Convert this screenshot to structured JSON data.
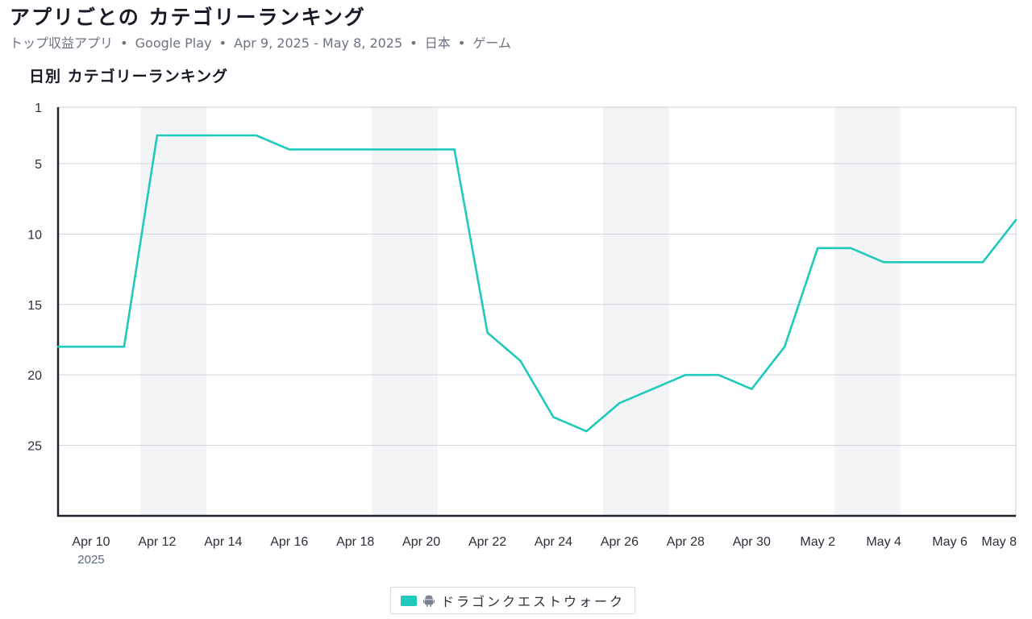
{
  "page": {
    "title": "アプリごとの カテゴリーランキング",
    "subtitle_parts": [
      "トップ収益アプリ",
      "Google Play",
      "Apr 9, 2025 - May 8, 2025",
      "日本",
      "ゲーム"
    ],
    "separator": "•"
  },
  "chart_title": "日別 カテゴリーランキング",
  "legend": {
    "series_label": "ドラゴンクエストウォーク",
    "platform_icon": "android-icon"
  },
  "colors": {
    "series": "#1fc9bb",
    "weekend_band": "#f3f4f6",
    "grid": "#cfd3da",
    "axis": "#1f2430"
  },
  "chart_data": {
    "type": "line",
    "title": "日別 カテゴリーランキング",
    "xlabel": "",
    "ylabel": "",
    "y_inverted": true,
    "ylim": [
      1,
      30
    ],
    "yticks": [
      1,
      5,
      10,
      15,
      20,
      25
    ],
    "x": [
      "Apr 9",
      "Apr 10",
      "Apr 11",
      "Apr 12",
      "Apr 13",
      "Apr 14",
      "Apr 15",
      "Apr 16",
      "Apr 17",
      "Apr 18",
      "Apr 19",
      "Apr 20",
      "Apr 21",
      "Apr 22",
      "Apr 23",
      "Apr 24",
      "Apr 25",
      "Apr 26",
      "Apr 27",
      "Apr 28",
      "Apr 29",
      "Apr 30",
      "May 1",
      "May 2",
      "May 3",
      "May 4",
      "May 5",
      "May 6",
      "May 7",
      "May 8"
    ],
    "x_tick_labels": [
      {
        "date": "Apr 10",
        "label": "Apr 10",
        "sub": "2025"
      },
      {
        "date": "Apr 12",
        "label": "Apr 12"
      },
      {
        "date": "Apr 14",
        "label": "Apr 14"
      },
      {
        "date": "Apr 16",
        "label": "Apr 16"
      },
      {
        "date": "Apr 18",
        "label": "Apr 18"
      },
      {
        "date": "Apr 20",
        "label": "Apr 20"
      },
      {
        "date": "Apr 22",
        "label": "Apr 22"
      },
      {
        "date": "Apr 24",
        "label": "Apr 24"
      },
      {
        "date": "Apr 26",
        "label": "Apr 26"
      },
      {
        "date": "Apr 28",
        "label": "Apr 28"
      },
      {
        "date": "Apr 30",
        "label": "Apr 30"
      },
      {
        "date": "May 2",
        "label": "May 2"
      },
      {
        "date": "May 4",
        "label": "May 4"
      },
      {
        "date": "May 6",
        "label": "May 6"
      },
      {
        "date": "May 8",
        "label": "May 8"
      }
    ],
    "weekend_bands": [
      [
        "Apr 12",
        "Apr 13"
      ],
      [
        "Apr 19",
        "Apr 20"
      ],
      [
        "Apr 26",
        "Apr 27"
      ],
      [
        "May 3",
        "May 4"
      ]
    ],
    "series": [
      {
        "name": "ドラゴンクエストウォーク",
        "color": "#1fc9bb",
        "values": [
          18,
          18,
          18,
          3,
          3,
          3,
          3,
          4,
          4,
          4,
          4,
          4,
          4,
          17,
          19,
          23,
          24,
          22,
          21,
          20,
          20,
          21,
          18,
          11,
          11,
          12,
          12,
          12,
          12,
          9
        ]
      }
    ]
  }
}
